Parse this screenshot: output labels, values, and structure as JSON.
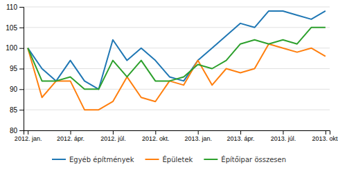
{
  "chart_data": {
    "type": "line",
    "categories": [
      "2012. jan.",
      null,
      null,
      "2012. ápr.",
      null,
      null,
      "2012. júl.",
      null,
      null,
      "2012. okt.",
      null,
      null,
      "2013. jan.",
      null,
      null,
      "2013. ápr.",
      null,
      null,
      "2013. júl.",
      null,
      null,
      "2013. okt."
    ],
    "series": [
      {
        "name": "Egyéb építmények",
        "values": [
          100,
          95,
          92,
          97,
          92,
          90,
          102,
          97,
          100,
          97,
          93,
          92,
          97,
          100,
          103,
          106,
          105,
          109,
          109,
          108,
          107,
          109
        ]
      },
      {
        "name": "Épületek",
        "values": [
          100,
          88,
          92,
          92,
          85,
          85,
          87,
          93,
          88,
          87,
          92,
          91,
          97,
          91,
          95,
          94,
          95,
          101,
          100,
          99,
          100,
          98
        ]
      },
      {
        "name": "Építőipar összesen",
        "values": [
          100,
          92,
          92,
          93,
          90,
          90,
          97,
          93,
          97,
          92,
          92,
          93,
          96,
          95,
          97,
          101,
          102,
          101,
          102,
          101,
          105,
          105
        ]
      }
    ],
    "ylim": [
      80,
      110
    ],
    "yticks": [
      80,
      85,
      90,
      95,
      100,
      105,
      110
    ],
    "grid": true,
    "legend": "bottom"
  }
}
